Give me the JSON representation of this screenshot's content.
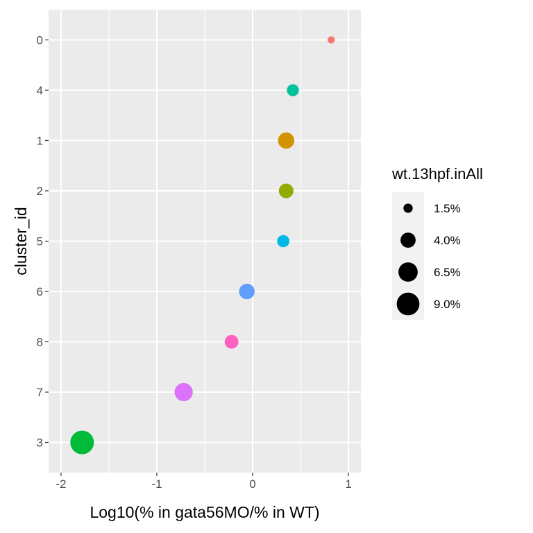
{
  "chart_data": {
    "type": "scatter",
    "xlabel": "Log10(% in gata56MO/% in WT)",
    "ylabel": "cluster_id",
    "xlim": [
      -2.13,
      1.13
    ],
    "x_ticks": [
      -2,
      -1,
      0,
      1
    ],
    "x_tick_labels": [
      "-2",
      "-1",
      "0",
      "1"
    ],
    "categories": [
      "0",
      "4",
      "1",
      "2",
      "5",
      "6",
      "8",
      "7",
      "3"
    ],
    "background": "#ebebeb",
    "grid": true,
    "legend": {
      "title": "wt.13hpf.inAll",
      "position": "right",
      "entries": [
        {
          "label": "1.5%",
          "size": 1.5
        },
        {
          "label": "4.0%",
          "size": 4.0
        },
        {
          "label": "6.5%",
          "size": 6.5
        },
        {
          "label": "9.0%",
          "size": 9.0
        }
      ]
    },
    "points": [
      {
        "cluster": "0",
        "x": 0.82,
        "size": 0.9,
        "color": "#f8766d"
      },
      {
        "cluster": "4",
        "x": 0.42,
        "size": 2.5,
        "color": "#00c19a"
      },
      {
        "cluster": "1",
        "x": 0.35,
        "size": 4.6,
        "color": "#d39200"
      },
      {
        "cluster": "2",
        "x": 0.35,
        "size": 3.7,
        "color": "#93aa00"
      },
      {
        "cluster": "5",
        "x": 0.32,
        "size": 2.6,
        "color": "#00b9e3"
      },
      {
        "cluster": "6",
        "x": -0.06,
        "size": 4.2,
        "color": "#619cff"
      },
      {
        "cluster": "8",
        "x": -0.22,
        "size": 3.3,
        "color": "#ff61c3"
      },
      {
        "cluster": "7",
        "x": -0.72,
        "size": 5.8,
        "color": "#db72fb"
      },
      {
        "cluster": "3",
        "x": -1.78,
        "size": 9.7,
        "color": "#00ba38"
      }
    ]
  }
}
